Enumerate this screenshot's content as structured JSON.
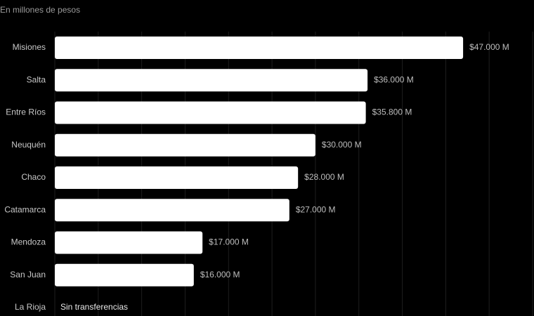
{
  "chart_data": {
    "type": "barh",
    "subtitle": "En millones de pesos",
    "categories": [
      "Misiones",
      "Salta",
      "Entre Ríos",
      "Neuquén",
      "Chaco",
      "Catamarca",
      "Mendoza",
      "San Juan",
      "La Rioja"
    ],
    "values": [
      47000,
      36000,
      35800,
      30000,
      28000,
      27000,
      17000,
      16000,
      0
    ],
    "value_labels": [
      "$47.000 M",
      "$36.000 M",
      "$35.800 M",
      "$30.000 M",
      "$28.000 M",
      "$27.000 M",
      "$17.000 M",
      "$16.000 M",
      "Sin transferencias"
    ],
    "color": "#ffffff",
    "xlim": [
      0,
      55000
    ],
    "xticks": [
      0,
      5000,
      10000,
      15000,
      20000,
      25000,
      30000,
      35000,
      40000,
      45000,
      50000,
      55000
    ],
    "grid": true
  }
}
